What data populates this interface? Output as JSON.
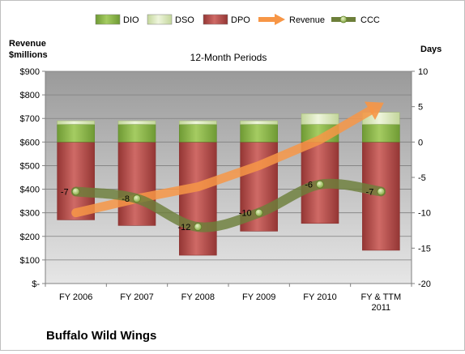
{
  "chart_data": {
    "type": "bar",
    "title": "12-Month Periods",
    "y_left_label": "Revenue\n$millions",
    "y_right_label": "Days",
    "categories": [
      "FY 2006",
      "FY 2007",
      "FY 2008",
      "FY 2009",
      "FY 2010",
      "FY & TTM\n2011"
    ],
    "ylim_left": [
      0,
      900
    ],
    "left_ticks": [
      0,
      100,
      200,
      300,
      400,
      500,
      600,
      700,
      800,
      900
    ],
    "left_tick_labels": [
      "$-",
      "$100",
      "$200",
      "$300",
      "$400",
      "$500",
      "$600",
      "$700",
      "$800",
      "$900"
    ],
    "ylim_right": [
      -20,
      10
    ],
    "right_ticks": [
      -20,
      -15,
      -10,
      -5,
      0,
      5,
      10
    ],
    "right_tick_labels": [
      "-20",
      "-15",
      "-10",
      "-5",
      "0",
      "5",
      "10"
    ],
    "legend_position": "top",
    "grid": true,
    "series": [
      {
        "name": "DIO",
        "kind": "stacked-bar",
        "axis": "right",
        "color": "#8cb84c",
        "values": [
          2.5,
          2.5,
          2.5,
          2.5,
          2.5,
          2.5
        ]
      },
      {
        "name": "DSO",
        "kind": "stacked-bar",
        "axis": "right",
        "color": "#d7e4bc",
        "values": [
          0.5,
          0.5,
          0.5,
          0.5,
          1.5,
          1.7
        ]
      },
      {
        "name": "DPO",
        "kind": "stacked-bar",
        "axis": "right",
        "color": "#b94a48",
        "values": [
          -11,
          -11.8,
          -16,
          -12.6,
          -11.5,
          -15.3
        ]
      },
      {
        "name": "Revenue",
        "kind": "arrow-line",
        "axis": "left",
        "color": "#f79646",
        "values": [
          300,
          360,
          410,
          500,
          610,
          760
        ]
      },
      {
        "name": "CCC",
        "kind": "line",
        "axis": "right",
        "color": "#6d7f3a",
        "values": [
          -7,
          -8,
          -12,
          -10,
          -6,
          -7
        ],
        "point_labels": [
          "-7",
          "-8",
          "-12",
          "-10",
          "-6",
          "-7"
        ]
      }
    ]
  },
  "footer": {
    "company": "Buffalo Wild Wings"
  }
}
